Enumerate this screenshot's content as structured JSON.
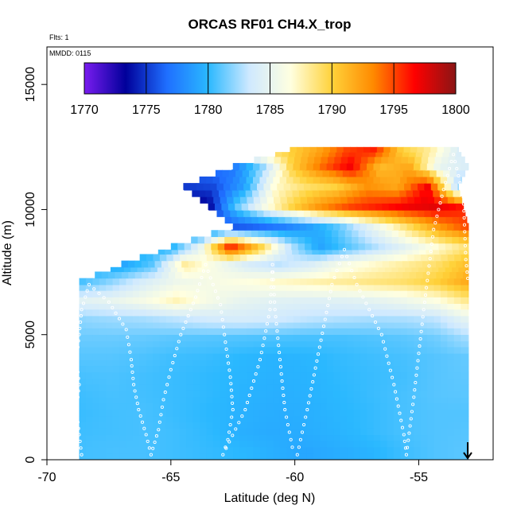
{
  "chart_data": {
    "type": "heatmap",
    "title": "ORCAS RF01 CH4.X_trop",
    "xlabel": "Latitude (deg N)",
    "ylabel": "Altitude (m)",
    "xlim": [
      -70,
      -52
    ],
    "ylim": [
      0,
      16500
    ],
    "xticks": [
      -70,
      -65,
      -60,
      -55
    ],
    "yticks": [
      0,
      5000,
      10000,
      15000
    ],
    "annotations": {
      "flights": "Flts: 1",
      "date": "MMDD: 0115"
    },
    "colorbar": {
      "ticks": [
        1770,
        1775,
        1780,
        1785,
        1790,
        1795,
        1800
      ],
      "range": [
        1770,
        1800
      ],
      "colors": [
        "#7a1cf0",
        "#00009a",
        "#1f6fff",
        "#2ab8ff",
        "#cfe9ff",
        "#ffffe0",
        "#ffd23a",
        "#ff8a00",
        "#ff0000",
        "#8a1515"
      ]
    },
    "layers": [
      {
        "alt": 250,
        "lat0": -68.7,
        "lat1": -53.0,
        "values": [
          1780.5,
          1780.6,
          1780.6,
          1780.4,
          1780.2,
          1780.0,
          1779.6,
          1779.2,
          1779.5,
          1779.8,
          1780.4,
          1780.8,
          1781.0
        ]
      },
      {
        "alt": 1000,
        "lat0": -68.7,
        "lat1": -53.0,
        "values": [
          1780.4,
          1780.5,
          1780.6,
          1780.4,
          1780.1,
          1779.6,
          1779.4,
          1779.5,
          1779.8,
          1780.2,
          1780.6,
          1780.8,
          1780.9
        ]
      },
      {
        "alt": 1750,
        "lat0": -68.7,
        "lat1": -53.0,
        "values": [
          1780.3,
          1780.5,
          1780.6,
          1780.3,
          1780.0,
          1779.7,
          1779.5,
          1779.6,
          1779.9,
          1780.2,
          1780.6,
          1780.8,
          1780.8
        ]
      },
      {
        "alt": 2500,
        "lat0": -68.7,
        "lat1": -53.0,
        "values": [
          1780.4,
          1780.6,
          1780.5,
          1780.3,
          1780.1,
          1779.8,
          1779.6,
          1779.7,
          1780.0,
          1780.3,
          1780.6,
          1780.9,
          1781.0
        ]
      },
      {
        "alt": 3250,
        "lat0": -68.7,
        "lat1": -53.0,
        "values": [
          1780.6,
          1780.7,
          1780.5,
          1780.3,
          1780.1,
          1779.9,
          1779.7,
          1779.8,
          1780.1,
          1780.3,
          1780.5,
          1780.9,
          1781.1
        ]
      },
      {
        "alt": 4000,
        "lat0": -68.7,
        "lat1": -53.0,
        "values": [
          1780.9,
          1780.9,
          1780.7,
          1780.4,
          1780.3,
          1780.0,
          1779.8,
          1779.9,
          1780.2,
          1780.4,
          1780.6,
          1780.9,
          1781.2
        ]
      },
      {
        "alt": 4750,
        "lat0": -68.7,
        "lat1": -53.0,
        "values": [
          1781.3,
          1781.3,
          1781.2,
          1781.0,
          1780.9,
          1780.8,
          1780.7,
          1780.6,
          1780.6,
          1780.8,
          1781.0,
          1781.4,
          1782.5
        ]
      },
      {
        "alt": 5500,
        "lat0": -68.7,
        "lat1": -53.0,
        "values": [
          1782.0,
          1782.3,
          1782.5,
          1783.0,
          1783.6,
          1783.8,
          1783.5,
          1783.0,
          1782.7,
          1782.5,
          1782.6,
          1783.0,
          1785.0
        ]
      },
      {
        "alt": 6250,
        "lat0": -68.7,
        "lat1": -53.0,
        "values": [
          1784.5,
          1785.0,
          1786.0,
          1787.5,
          1786.0,
          1785.0,
          1784.6,
          1784.4,
          1784.5,
          1784.8,
          1785.5,
          1786.5,
          1788.5
        ]
      },
      {
        "alt": 7000,
        "lat0": -68.7,
        "lat1": -53.0,
        "values": [
          1780.5,
          1782.0,
          1784.0,
          1785.5,
          1786.0,
          1786.5,
          1787.0,
          1787.5,
          1788.0,
          1788.5,
          1789.0,
          1790.0,
          1792.0
        ]
      },
      {
        "alt": 7700,
        "lat0": -67.0,
        "lat1": -53.0,
        "values": [
          1779.0,
          1781.0,
          1788.0,
          1786.0,
          1784.0,
          1783.0,
          1784.0,
          1786.0,
          1787.0,
          1788.0,
          1789.0,
          1791.0
        ]
      },
      {
        "alt": 8400,
        "lat0": -65.0,
        "lat1": -53.0,
        "values": [
          1779.5,
          1785.0,
          1796.0,
          1790.0,
          1783.0,
          1779.0,
          1781.0,
          1783.0,
          1785.0,
          1787.0,
          1789.0
        ]
      },
      {
        "alt": 9200,
        "lat0": -62.5,
        "lat1": -53.0,
        "values": [
          1776.0,
          1776.5,
          1777.5,
          1779.0,
          1781.0,
          1784.0,
          1787.0,
          1790.0,
          1793.0,
          1795.0
        ]
      },
      {
        "alt": 10000,
        "lat0": -63.5,
        "lat1": -53.2,
        "values": [
          1773.0,
          1781.0,
          1786.0,
          1790.0,
          1793.0,
          1795.0,
          1796.0,
          1797.0,
          1797.5,
          1796.0
        ]
      },
      {
        "alt": 10800,
        "lat0": -64.5,
        "lat1": -53.4,
        "values": [
          1775.0,
          1775.5,
          1779.0,
          1787.0,
          1789.0,
          1790.0,
          1793.0,
          1792.0,
          1797.0,
          1782.0
        ]
      },
      {
        "alt": 11600,
        "lat0": -62.5,
        "lat1": -53.0,
        "values": [
          1777.0,
          1782.0,
          1790.0,
          1794.0,
          1797.0,
          1791.0,
          1792.0,
          1785.0,
          1784.0
        ]
      },
      {
        "alt": 12300,
        "lat0": -60.2,
        "lat1": -53.4,
        "values": [
          1790.0,
          1792.0,
          1795.0,
          1796.0,
          1790.0,
          1788.0,
          1784.0
        ]
      }
    ],
    "flight_track": [
      [
        -68.6,
        200
      ],
      [
        -68.7,
        1000
      ],
      [
        -68.8,
        2000
      ],
      [
        -68.7,
        3000
      ],
      [
        -68.8,
        4000
      ],
      [
        -68.7,
        5000
      ],
      [
        -68.6,
        6000
      ],
      [
        -68.3,
        7000
      ],
      [
        -67.5,
        6300
      ],
      [
        -66.8,
        5200
      ],
      [
        -66.6,
        4000
      ],
      [
        -66.5,
        3000
      ],
      [
        -66.3,
        2000
      ],
      [
        -66.0,
        1000
      ],
      [
        -65.8,
        200
      ],
      [
        -65.5,
        1200
      ],
      [
        -65.3,
        2400
      ],
      [
        -65.0,
        3600
      ],
      [
        -64.6,
        5000
      ],
      [
        -64.0,
        6500
      ],
      [
        -63.6,
        7800
      ],
      [
        -63.0,
        6200
      ],
      [
        -62.8,
        4700
      ],
      [
        -62.6,
        3300
      ],
      [
        -62.5,
        2000
      ],
      [
        -62.7,
        800
      ],
      [
        -62.9,
        200
      ],
      [
        -62.0,
        2000
      ],
      [
        -61.4,
        4000
      ],
      [
        -61.0,
        6000
      ],
      [
        -60.9,
        7800
      ],
      [
        -60.8,
        6000
      ],
      [
        -60.6,
        4000
      ],
      [
        -60.4,
        2000
      ],
      [
        -60.1,
        500
      ],
      [
        -59.9,
        200
      ],
      [
        -59.5,
        2000
      ],
      [
        -59.0,
        4500
      ],
      [
        -58.5,
        7000
      ],
      [
        -58.0,
        8400
      ],
      [
        -57.5,
        7000
      ],
      [
        -56.5,
        5000
      ],
      [
        -56.0,
        3000
      ],
      [
        -55.6,
        1000
      ],
      [
        -55.5,
        200
      ],
      [
        -55.2,
        2500
      ],
      [
        -54.8,
        6000
      ],
      [
        -54.4,
        9200
      ],
      [
        -54.0,
        10800
      ],
      [
        -53.6,
        12200
      ],
      [
        -53.2,
        10500
      ],
      [
        -53.1,
        8000
      ],
      [
        -53.0,
        7000
      ]
    ]
  }
}
